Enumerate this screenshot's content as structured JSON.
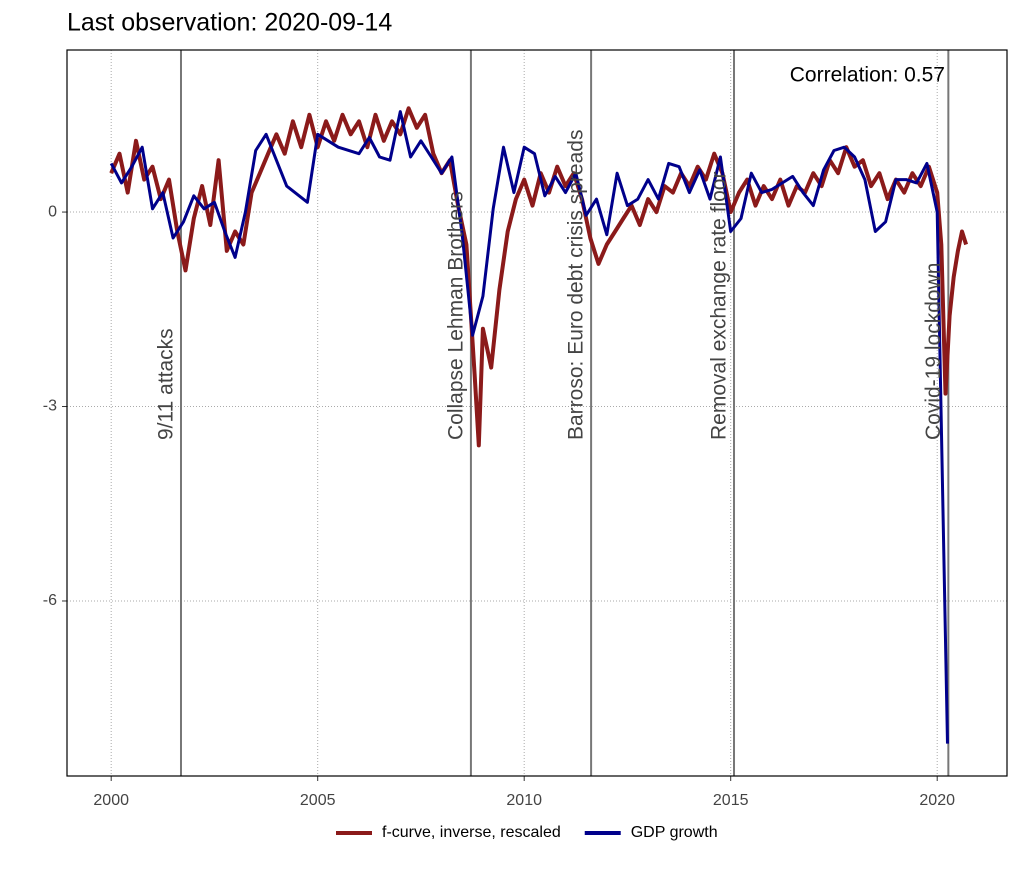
{
  "chart_data": {
    "type": "line",
    "title": "Last observation: 2020-09-14",
    "annotation": "Correlation: 0.57",
    "xlim": [
      1998.93,
      2021.69
    ],
    "xticks": [
      2000,
      2005,
      2010,
      2015,
      2020
    ],
    "ylim": [
      -8.7,
      2.5
    ],
    "yticks": [
      -6,
      -3,
      0
    ],
    "grid": true,
    "legend": "bottom",
    "events": [
      {
        "x": 2001.69,
        "label": "9/11 attacks"
      },
      {
        "x": 2008.71,
        "label": "Collapse Lehman Brothers"
      },
      {
        "x": 2011.62,
        "label": "Barroso: Euro debt crisis spreads"
      },
      {
        "x": 2015.08,
        "label": "Removal exchange rate floor"
      },
      {
        "x": 2020.27,
        "label": "Covid-19 lockdown"
      }
    ],
    "series": [
      {
        "name": "f-curve, inverse, rescaled",
        "color": "#8b1a1a",
        "x": [
          2000.0,
          2000.2,
          2000.4,
          2000.6,
          2000.8,
          2001.0,
          2001.2,
          2001.4,
          2001.6,
          2001.8,
          2002.0,
          2002.2,
          2002.4,
          2002.6,
          2002.8,
          2003.0,
          2003.2,
          2003.4,
          2003.6,
          2003.8,
          2004.0,
          2004.2,
          2004.4,
          2004.6,
          2004.8,
          2005.0,
          2005.2,
          2005.4,
          2005.6,
          2005.8,
          2006.0,
          2006.2,
          2006.4,
          2006.6,
          2006.8,
          2007.0,
          2007.2,
          2007.4,
          2007.6,
          2007.8,
          2008.0,
          2008.2,
          2008.4,
          2008.6,
          2008.8,
          2008.9,
          2009.0,
          2009.2,
          2009.4,
          2009.6,
          2009.8,
          2010.0,
          2010.2,
          2010.4,
          2010.6,
          2010.8,
          2011.0,
          2011.2,
          2011.4,
          2011.6,
          2011.8,
          2012.0,
          2012.2,
          2012.4,
          2012.6,
          2012.8,
          2013.0,
          2013.2,
          2013.4,
          2013.6,
          2013.8,
          2014.0,
          2014.2,
          2014.4,
          2014.6,
          2014.8,
          2015.0,
          2015.2,
          2015.4,
          2015.6,
          2015.8,
          2016.0,
          2016.2,
          2016.4,
          2016.6,
          2016.8,
          2017.0,
          2017.2,
          2017.4,
          2017.6,
          2017.8,
          2018.0,
          2018.2,
          2018.4,
          2018.6,
          2018.8,
          2019.0,
          2019.2,
          2019.4,
          2019.6,
          2019.8,
          2020.0,
          2020.1,
          2020.2,
          2020.3,
          2020.4,
          2020.5,
          2020.6,
          2020.7
        ],
        "values": [
          0.6,
          0.9,
          0.3,
          1.1,
          0.5,
          0.7,
          0.2,
          0.5,
          -0.3,
          -0.9,
          -0.1,
          0.4,
          -0.2,
          0.8,
          -0.6,
          -0.3,
          -0.5,
          0.3,
          0.6,
          0.9,
          1.2,
          0.9,
          1.4,
          1.0,
          1.5,
          1.0,
          1.4,
          1.1,
          1.5,
          1.2,
          1.4,
          1.0,
          1.5,
          1.1,
          1.4,
          1.2,
          1.6,
          1.3,
          1.5,
          0.9,
          0.6,
          0.8,
          0.1,
          -0.5,
          -2.5,
          -3.6,
          -1.8,
          -2.4,
          -1.2,
          -0.3,
          0.2,
          0.5,
          0.1,
          0.6,
          0.3,
          0.7,
          0.4,
          0.6,
          0.2,
          -0.4,
          -0.8,
          -0.5,
          -0.3,
          -0.1,
          0.1,
          -0.2,
          0.2,
          0.0,
          0.4,
          0.3,
          0.6,
          0.4,
          0.7,
          0.5,
          0.9,
          0.6,
          0.0,
          0.3,
          0.5,
          0.1,
          0.4,
          0.2,
          0.5,
          0.1,
          0.4,
          0.3,
          0.6,
          0.4,
          0.8,
          0.6,
          1.0,
          0.7,
          0.8,
          0.4,
          0.6,
          0.2,
          0.5,
          0.3,
          0.6,
          0.4,
          0.7,
          0.3,
          -0.5,
          -2.8,
          -1.6,
          -1.0,
          -0.6,
          -0.3,
          -0.5
        ]
      },
      {
        "name": "GDP growth",
        "color": "#00008b",
        "x": [
          2000.0,
          2000.25,
          2000.5,
          2000.75,
          2001.0,
          2001.25,
          2001.5,
          2001.75,
          2002.0,
          2002.25,
          2002.5,
          2002.75,
          2003.0,
          2003.25,
          2003.5,
          2003.75,
          2004.0,
          2004.25,
          2004.75,
          2005.0,
          2005.5,
          2006.0,
          2006.25,
          2006.5,
          2006.75,
          2007.0,
          2007.25,
          2007.5,
          2007.75,
          2008.0,
          2008.25,
          2008.5,
          2008.75,
          2009.0,
          2009.25,
          2009.5,
          2009.75,
          2010.0,
          2010.25,
          2010.5,
          2010.75,
          2011.0,
          2011.25,
          2011.5,
          2011.75,
          2012.0,
          2012.25,
          2012.5,
          2012.75,
          2013.0,
          2013.25,
          2013.5,
          2013.75,
          2014.0,
          2014.25,
          2014.5,
          2014.75,
          2015.0,
          2015.25,
          2015.5,
          2015.75,
          2016.0,
          2016.5,
          2016.75,
          2017.0,
          2017.25,
          2017.5,
          2017.75,
          2018.0,
          2018.25,
          2018.5,
          2018.75,
          2019.0,
          2019.25,
          2019.5,
          2019.75,
          2020.0,
          2020.25
        ],
        "values": [
          0.75,
          0.45,
          0.7,
          1.0,
          0.05,
          0.3,
          -0.4,
          -0.15,
          0.25,
          0.05,
          0.15,
          -0.3,
          -0.7,
          0.0,
          0.95,
          1.2,
          0.8,
          0.4,
          0.15,
          1.2,
          1.0,
          0.9,
          1.15,
          0.85,
          0.8,
          1.55,
          0.85,
          1.1,
          0.85,
          0.6,
          0.85,
          -0.35,
          -1.9,
          -1.3,
          0.05,
          1.0,
          0.3,
          1.0,
          0.9,
          0.25,
          0.55,
          0.3,
          0.6,
          -0.05,
          0.2,
          -0.35,
          0.6,
          0.1,
          0.2,
          0.5,
          0.2,
          0.75,
          0.7,
          0.3,
          0.65,
          0.2,
          0.85,
          -0.3,
          -0.1,
          0.6,
          0.3,
          0.35,
          0.55,
          0.3,
          0.1,
          0.65,
          0.95,
          1.0,
          0.85,
          0.5,
          -0.3,
          -0.15,
          0.5,
          0.5,
          0.45,
          0.75,
          0.0,
          -8.2
        ]
      }
    ]
  }
}
